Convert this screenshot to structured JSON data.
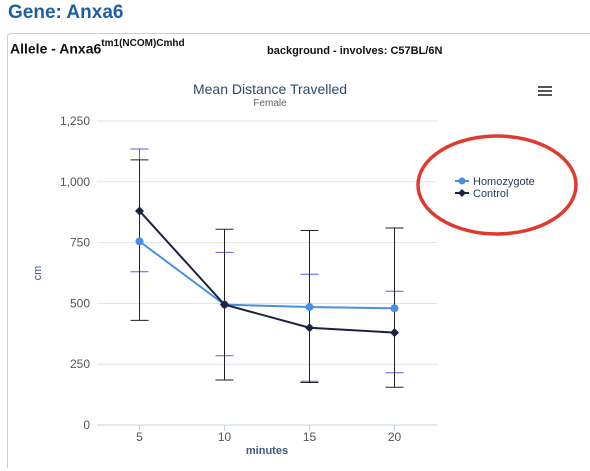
{
  "page": {
    "gene_title": "Gene: Anxa6",
    "allele_prefix": "Allele - Anxa6",
    "allele_sup": "tm1(NCOM)Cmhd",
    "background": "background - involves: C57BL/6N"
  },
  "menu_icon": "hamburger-menu-icon",
  "colors": {
    "homozygote": "#4a90e2",
    "control": "#1c2340",
    "homozygote_err": "#5b5be6",
    "control_err": "#222222",
    "highlight_ring": "#e03a2e",
    "title": "#2b4a6f"
  },
  "chart_data": {
    "type": "line",
    "title": "Mean Distance Travelled",
    "subtitle": "Female",
    "xlabel": "minutes",
    "ylabel": "cm",
    "x": [
      5,
      10,
      15,
      20
    ],
    "xlim": [
      2.5,
      22.5
    ],
    "ylim": [
      0,
      1250
    ],
    "yticks": [
      0,
      250,
      500,
      750,
      1000,
      1250
    ],
    "ytick_labels": [
      "0",
      "250",
      "500",
      "750",
      "1,000",
      "1,250"
    ],
    "grid": true,
    "legend_position": "right",
    "series": [
      {
        "name": "Homozygote",
        "values": [
          755,
          495,
          485,
          480
        ],
        "err_low": [
          630,
          285,
          180,
          215
        ],
        "err_high": [
          1135,
          710,
          620,
          550
        ]
      },
      {
        "name": "Control",
        "values": [
          880,
          495,
          400,
          380
        ],
        "err_low": [
          430,
          185,
          175,
          155
        ],
        "err_high": [
          1090,
          805,
          800,
          810
        ]
      }
    ]
  }
}
